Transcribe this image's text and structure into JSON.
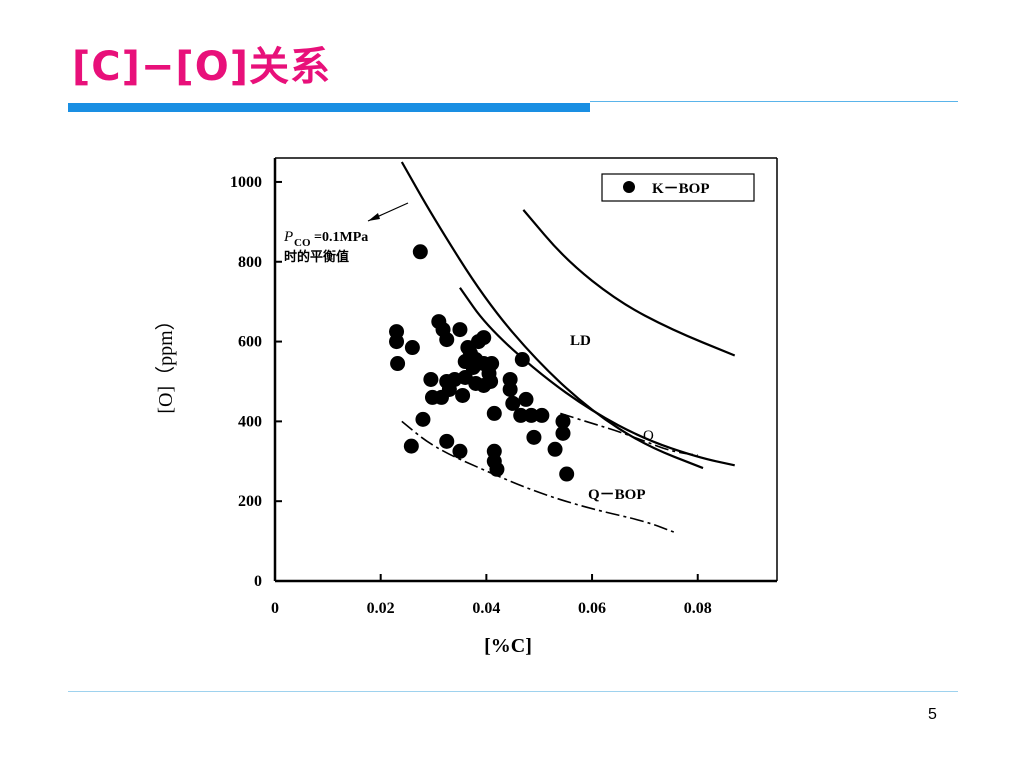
{
  "slide": {
    "title": "[C]−[O]关系",
    "page_number": "5"
  },
  "colors": {
    "title": "#e8107a",
    "accent_bar": "#1a8fe3",
    "rule": "#5ab4ea"
  },
  "chart_data": {
    "type": "scatter",
    "title": "",
    "xlabel": "[%C]",
    "ylabel": "[O]（ppm）",
    "xlim": [
      0,
      0.095
    ],
    "ylim": [
      0,
      1060
    ],
    "x_ticks": [
      0,
      0.02,
      0.04,
      0.06,
      0.08
    ],
    "x_tick_labels": [
      "0",
      "0.02",
      "0.04",
      "0.06",
      "0.08"
    ],
    "y_ticks": [
      0,
      200,
      400,
      600,
      800,
      1000
    ],
    "y_tick_labels": [
      "0",
      "200",
      "400",
      "600",
      "800",
      "1000"
    ],
    "grid": false,
    "legend_position": "top-right",
    "legend": [
      {
        "name": "K－BOP",
        "marker": "filled-circle"
      }
    ],
    "annotations": {
      "pco_label_line1": "P",
      "pco_label_sub": "CO",
      "pco_label_rest": "=0.1MPa",
      "pco_label_line2": "时的平衡值",
      "ld_label": "LD",
      "o_label": "O",
      "qbop_label": "Q－BOP"
    },
    "series": [
      {
        "name": "K－BOP",
        "points": [
          [
            0.0275,
            825
          ],
          [
            0.023,
            625
          ],
          [
            0.023,
            600
          ],
          [
            0.0232,
            545
          ],
          [
            0.026,
            585
          ],
          [
            0.031,
            650
          ],
          [
            0.0318,
            630
          ],
          [
            0.0325,
            605
          ],
          [
            0.035,
            630
          ],
          [
            0.0365,
            585
          ],
          [
            0.037,
            570
          ],
          [
            0.0385,
            600
          ],
          [
            0.0395,
            610
          ],
          [
            0.038,
            555
          ],
          [
            0.0375,
            535
          ],
          [
            0.036,
            550
          ],
          [
            0.0395,
            545
          ],
          [
            0.041,
            545
          ],
          [
            0.0405,
            520
          ],
          [
            0.0295,
            505
          ],
          [
            0.0325,
            500
          ],
          [
            0.034,
            505
          ],
          [
            0.036,
            510
          ],
          [
            0.038,
            495
          ],
          [
            0.0395,
            490
          ],
          [
            0.0408,
            500
          ],
          [
            0.0445,
            505
          ],
          [
            0.0445,
            480
          ],
          [
            0.0468,
            555
          ],
          [
            0.0475,
            455
          ],
          [
            0.0298,
            460
          ],
          [
            0.0315,
            460
          ],
          [
            0.033,
            480
          ],
          [
            0.0355,
            465
          ],
          [
            0.045,
            445
          ],
          [
            0.0465,
            415
          ],
          [
            0.0485,
            415
          ],
          [
            0.0505,
            415
          ],
          [
            0.0415,
            420
          ],
          [
            0.0545,
            400
          ],
          [
            0.0545,
            370
          ],
          [
            0.049,
            360
          ],
          [
            0.028,
            405
          ],
          [
            0.0325,
            350
          ],
          [
            0.035,
            325
          ],
          [
            0.0258,
            338
          ],
          [
            0.0415,
            325
          ],
          [
            0.0415,
            300
          ],
          [
            0.042,
            280
          ],
          [
            0.053,
            330
          ],
          [
            0.0552,
            268
          ]
        ]
      }
    ],
    "curves": [
      {
        "name": "P_CO=0.1MPa",
        "style": "solid",
        "points": [
          [
            0.024,
            1050
          ],
          [
            0.03,
            910
          ],
          [
            0.04,
            700
          ],
          [
            0.05,
            545
          ],
          [
            0.06,
            425
          ],
          [
            0.07,
            340
          ],
          [
            0.081,
            283
          ]
        ]
      },
      {
        "name": "LD-lower",
        "style": "solid",
        "points": [
          [
            0.035,
            735
          ],
          [
            0.04,
            640
          ],
          [
            0.05,
            520
          ],
          [
            0.06,
            425
          ],
          [
            0.07,
            355
          ],
          [
            0.08,
            310
          ],
          [
            0.087,
            290
          ]
        ]
      },
      {
        "name": "LD-upper",
        "style": "solid",
        "points": [
          [
            0.047,
            930
          ],
          [
            0.055,
            805
          ],
          [
            0.065,
            700
          ],
          [
            0.075,
            630
          ],
          [
            0.087,
            565
          ]
        ]
      },
      {
        "name": "O",
        "style": "dash-dot",
        "points": [
          [
            0.054,
            420
          ],
          [
            0.06,
            395
          ],
          [
            0.065,
            375
          ],
          [
            0.07,
            350
          ],
          [
            0.075,
            325
          ],
          [
            0.08,
            315
          ]
        ]
      },
      {
        "name": "Q-BOP",
        "style": "dash-dot",
        "points": [
          [
            0.024,
            400
          ],
          [
            0.03,
            335
          ],
          [
            0.04,
            275
          ],
          [
            0.05,
            220
          ],
          [
            0.06,
            180
          ],
          [
            0.07,
            150
          ],
          [
            0.076,
            120
          ]
        ]
      }
    ]
  }
}
